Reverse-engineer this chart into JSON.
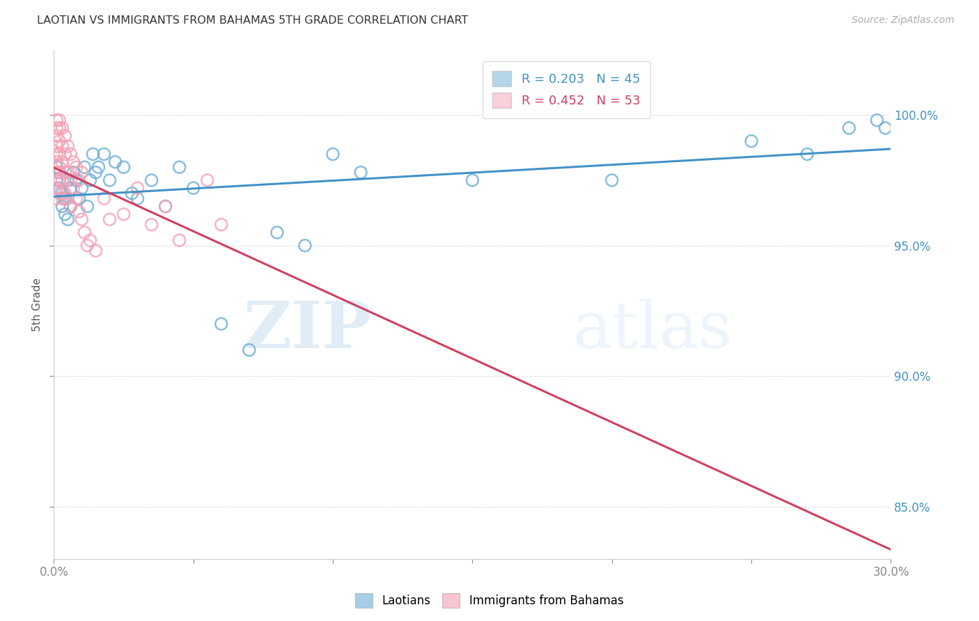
{
  "title": "LAOTIAN VS IMMIGRANTS FROM BAHAMAS 5TH GRADE CORRELATION CHART",
  "source": "Source: ZipAtlas.com",
  "ylabel": "5th Grade",
  "legend_blue_r": "R = 0.203",
  "legend_blue_n": "N = 45",
  "legend_pink_r": "R = 0.452",
  "legend_pink_n": "N = 53",
  "blue_color": "#6baed6",
  "pink_color": "#f4a0b5",
  "blue_line_color": "#4292c6",
  "pink_line_color": "#d04060",
  "watermark_zip": "ZIP",
  "watermark_atlas": "atlas",
  "blue_scatter_x": [
    0.001,
    0.001,
    0.002,
    0.002,
    0.003,
    0.003,
    0.004,
    0.004,
    0.005,
    0.005,
    0.006,
    0.006,
    0.007,
    0.008,
    0.009,
    0.01,
    0.011,
    0.012,
    0.013,
    0.014,
    0.015,
    0.016,
    0.018,
    0.02,
    0.022,
    0.025,
    0.028,
    0.03,
    0.035,
    0.04,
    0.045,
    0.05,
    0.06,
    0.07,
    0.08,
    0.09,
    0.1,
    0.11,
    0.15,
    0.2,
    0.25,
    0.27,
    0.285,
    0.295,
    0.298
  ],
  "blue_scatter_y": [
    0.98,
    0.975,
    0.978,
    0.972,
    0.97,
    0.965,
    0.968,
    0.962,
    0.975,
    0.96,
    0.972,
    0.965,
    0.978,
    0.975,
    0.968,
    0.972,
    0.98,
    0.965,
    0.975,
    0.985,
    0.978,
    0.98,
    0.985,
    0.975,
    0.982,
    0.98,
    0.97,
    0.968,
    0.975,
    0.965,
    0.98,
    0.972,
    0.92,
    0.91,
    0.955,
    0.95,
    0.985,
    0.978,
    0.975,
    0.975,
    0.99,
    0.985,
    0.995,
    0.998,
    0.995
  ],
  "pink_scatter_x": [
    0.001,
    0.001,
    0.001,
    0.001,
    0.001,
    0.001,
    0.001,
    0.001,
    0.001,
    0.001,
    0.002,
    0.002,
    0.002,
    0.002,
    0.002,
    0.002,
    0.002,
    0.003,
    0.003,
    0.003,
    0.003,
    0.003,
    0.004,
    0.004,
    0.004,
    0.004,
    0.005,
    0.005,
    0.005,
    0.006,
    0.006,
    0.006,
    0.007,
    0.007,
    0.008,
    0.008,
    0.009,
    0.009,
    0.01,
    0.01,
    0.011,
    0.012,
    0.013,
    0.015,
    0.018,
    0.02,
    0.025,
    0.03,
    0.035,
    0.04,
    0.045,
    0.055,
    0.06
  ],
  "pink_scatter_y": [
    0.998,
    0.995,
    0.992,
    0.988,
    0.985,
    0.982,
    0.978,
    0.975,
    0.972,
    0.968,
    0.998,
    0.995,
    0.99,
    0.985,
    0.98,
    0.975,
    0.97,
    0.995,
    0.988,
    0.982,
    0.975,
    0.968,
    0.992,
    0.985,
    0.978,
    0.97,
    0.988,
    0.978,
    0.968,
    0.985,
    0.975,
    0.965,
    0.982,
    0.972,
    0.98,
    0.968,
    0.975,
    0.963,
    0.978,
    0.96,
    0.955,
    0.95,
    0.952,
    0.948,
    0.968,
    0.96,
    0.962,
    0.972,
    0.958,
    0.965,
    0.952,
    0.975,
    0.958
  ]
}
